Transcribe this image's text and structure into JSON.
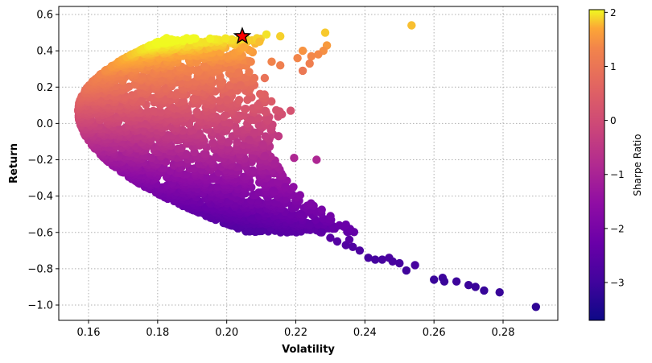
{
  "chart_data": {
    "type": "scatter",
    "title": "",
    "xlabel": "Volatility",
    "ylabel": "Return",
    "xlim": [
      0.151,
      0.2965
    ],
    "ylim": [
      -1.09,
      0.625
    ],
    "xticks": [
      0.16,
      0.18,
      0.2,
      0.22,
      0.24,
      0.26,
      0.28
    ],
    "xtick_labels": [
      "0.16",
      "0.18",
      "0.20",
      "0.22",
      "0.24",
      "0.26",
      "0.28"
    ],
    "yticks": [
      0.6,
      0.4,
      0.2,
      0.0,
      -0.2,
      -0.4,
      -0.6,
      -0.8,
      -1.0
    ],
    "ytick_labels": [
      "0.6",
      "0.4",
      "0.2",
      "0.0",
      "−0.2",
      "−0.4",
      "−0.6",
      "−0.8",
      "−1.0"
    ],
    "grid": true,
    "grid_style": "dotted",
    "colormap": "plasma",
    "colorbar": {
      "label": "Sharpe Ratio",
      "range": [
        -3.7,
        2.05
      ],
      "ticks": [
        2,
        1,
        0,
        -1,
        -2,
        -3
      ],
      "tick_labels": [
        "2",
        "1",
        "0",
        "−1",
        "−2",
        "−3"
      ],
      "placement": "right"
    },
    "cloud": {
      "description": "Dense simulated portfolio cloud (efficient-frontier bullet), colored by Sharpe ratio",
      "min_volatility": 0.157,
      "min_volatility_return": 0.07,
      "return_range": [
        -0.6,
        0.47
      ],
      "volatility_range": [
        0.157,
        0.225
      ]
    },
    "outliers": [
      {
        "x": 0.2535,
        "y": 0.54
      },
      {
        "x": 0.2285,
        "y": 0.5
      },
      {
        "x": 0.229,
        "y": 0.43
      },
      {
        "x": 0.228,
        "y": 0.4
      },
      {
        "x": 0.2265,
        "y": 0.38
      },
      {
        "x": 0.2245,
        "y": 0.37
      },
      {
        "x": 0.224,
        "y": 0.33
      },
      {
        "x": 0.2205,
        "y": 0.36
      },
      {
        "x": 0.222,
        "y": 0.29
      },
      {
        "x": 0.222,
        "y": 0.4
      },
      {
        "x": 0.213,
        "y": 0.34
      },
      {
        "x": 0.211,
        "y": 0.25
      },
      {
        "x": 0.2155,
        "y": 0.48
      },
      {
        "x": 0.2115,
        "y": 0.49
      },
      {
        "x": 0.2095,
        "y": 0.45
      },
      {
        "x": 0.207,
        "y": 0.34
      },
      {
        "x": 0.206,
        "y": 0.46
      },
      {
        "x": 0.205,
        "y": 0.42
      },
      {
        "x": 0.2035,
        "y": 0.28
      },
      {
        "x": 0.208,
        "y": 0.25
      },
      {
        "x": 0.2155,
        "y": 0.32
      },
      {
        "x": 0.2185,
        "y": 0.07
      },
      {
        "x": 0.215,
        "y": -0.07
      },
      {
        "x": 0.214,
        "y": -0.22
      },
      {
        "x": 0.2195,
        "y": -0.19
      },
      {
        "x": 0.226,
        "y": -0.2
      },
      {
        "x": 0.217,
        "y": -0.35
      },
      {
        "x": 0.2135,
        "y": -0.37
      },
      {
        "x": 0.209,
        "y": 0.1
      },
      {
        "x": 0.207,
        "y": 0.02
      },
      {
        "x": 0.208,
        "y": -0.05
      },
      {
        "x": 0.2065,
        "y": -0.09
      },
      {
        "x": 0.2105,
        "y": -0.12
      },
      {
        "x": 0.211,
        "y": -0.18
      },
      {
        "x": 0.212,
        "y": 0.02
      },
      {
        "x": 0.204,
        "y": 0.21
      },
      {
        "x": 0.206,
        "y": 0.13
      },
      {
        "x": 0.2,
        "y": 0.13
      },
      {
        "x": 0.2215,
        "y": -0.5
      },
      {
        "x": 0.224,
        "y": -0.56
      },
      {
        "x": 0.2275,
        "y": -0.6
      },
      {
        "x": 0.23,
        "y": -0.63
      },
      {
        "x": 0.232,
        "y": -0.65
      },
      {
        "x": 0.2345,
        "y": -0.67
      },
      {
        "x": 0.2355,
        "y": -0.64
      },
      {
        "x": 0.2365,
        "y": -0.68
      },
      {
        "x": 0.2385,
        "y": -0.7
      },
      {
        "x": 0.241,
        "y": -0.74
      },
      {
        "x": 0.243,
        "y": -0.75
      },
      {
        "x": 0.245,
        "y": -0.75
      },
      {
        "x": 0.247,
        "y": -0.74
      },
      {
        "x": 0.248,
        "y": -0.76
      },
      {
        "x": 0.25,
        "y": -0.77
      },
      {
        "x": 0.252,
        "y": -0.81
      },
      {
        "x": 0.2545,
        "y": -0.78
      },
      {
        "x": 0.26,
        "y": -0.86
      },
      {
        "x": 0.2625,
        "y": -0.85
      },
      {
        "x": 0.263,
        "y": -0.87
      },
      {
        "x": 0.2665,
        "y": -0.87
      },
      {
        "x": 0.27,
        "y": -0.89
      },
      {
        "x": 0.272,
        "y": -0.9
      },
      {
        "x": 0.2745,
        "y": -0.92
      },
      {
        "x": 0.279,
        "y": -0.93
      },
      {
        "x": 0.2895,
        "y": -1.01
      }
    ],
    "max_sharpe_marker": {
      "label": "Max Sharpe Ratio portfolio",
      "symbol": "star",
      "x": 0.2045,
      "y": 0.48,
      "color": "#ff0000"
    }
  }
}
